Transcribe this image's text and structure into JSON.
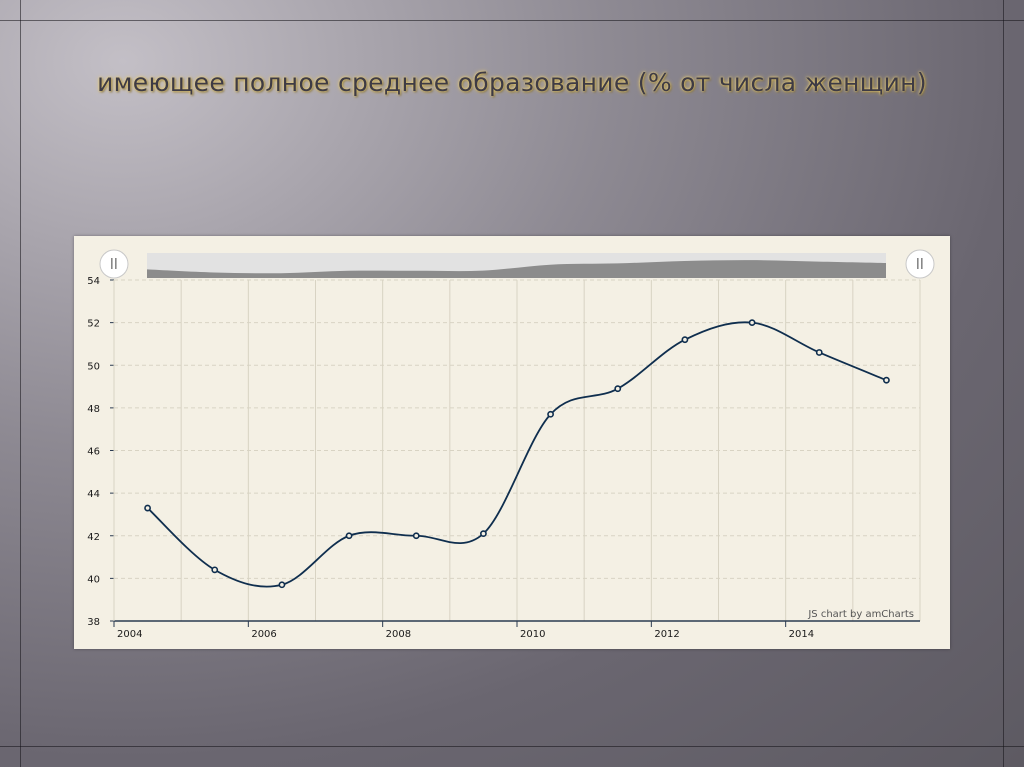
{
  "slide": {
    "title": "имеющее полное среднее образование (% от числа женщин)"
  },
  "chart_data": {
    "type": "line",
    "title": "",
    "xlabel": "",
    "ylabel": "",
    "x_ticks": [
      "2004",
      "2006",
      "2008",
      "2010",
      "2012",
      "2014"
    ],
    "y_ticks": [
      "38",
      "40",
      "42",
      "44",
      "46",
      "48",
      "50",
      "52",
      "54"
    ],
    "xlim": [
      2004,
      2016
    ],
    "ylim": [
      38,
      54
    ],
    "grid": true,
    "series": [
      {
        "x": [
          2004.5,
          2005.5,
          2006.5,
          2007.5,
          2008.5,
          2009.5,
          2010.5,
          2011.5,
          2012.5,
          2013.5,
          2014.5,
          2015.5
        ],
        "values": [
          43.3,
          40.4,
          39.7,
          42.0,
          42.0,
          42.1,
          47.7,
          48.9,
          51.2,
          52.0,
          50.6,
          49.3
        ]
      }
    ],
    "colors": {
      "line": "#0f2e4e",
      "grid": "#d8d3c3",
      "axis": "#2a3a50",
      "scrollbar_fill": "#8c8c8c",
      "scrollbar_bg": "#e2e2e2"
    },
    "credit": "JS chart by amCharts"
  }
}
